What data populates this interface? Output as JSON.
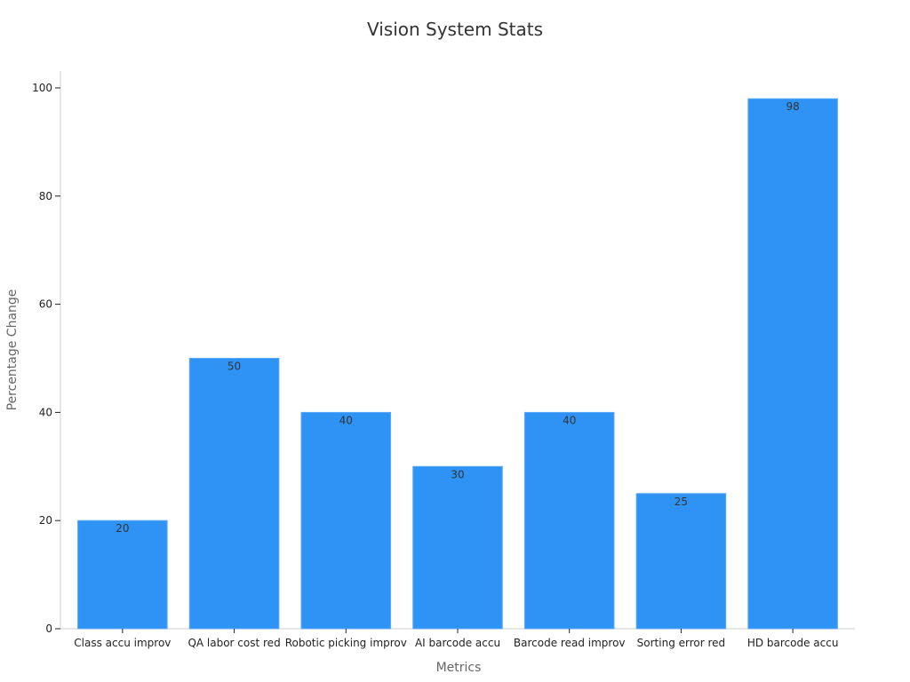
{
  "chart_data": {
    "type": "bar",
    "title": "Vision System Stats",
    "xlabel": "Metrics",
    "ylabel": "Percentage Change",
    "categories": [
      "Class accu improv",
      "QA labor cost red",
      "Robotic picking improv",
      "AI barcode accu",
      "Barcode read improv",
      "Sorting error red",
      "HD barcode accu"
    ],
    "values": [
      20,
      50,
      40,
      30,
      40,
      25,
      98
    ],
    "ylim": [
      0,
      100
    ],
    "yticks": [
      0,
      20,
      40,
      60,
      80,
      100
    ],
    "grid": false,
    "legend": "none",
    "data_labels": true
  },
  "colors": {
    "bar": "#2F93F6",
    "bar_edge": "#5AAAF8",
    "axis": "#cccccc",
    "tick": "#222222"
  }
}
